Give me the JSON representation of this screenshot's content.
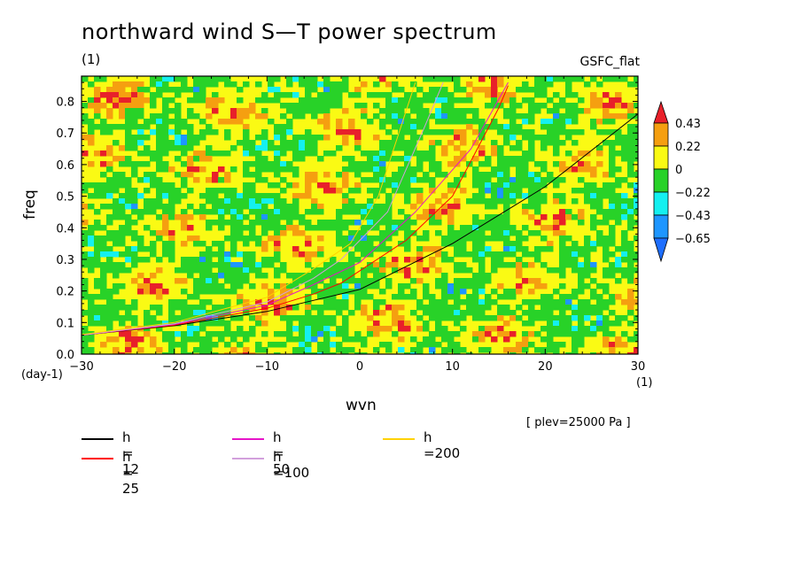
{
  "title": "northward wind S—T power spectrum",
  "unit_top": "(1)",
  "source": "GSFC_flat",
  "level_note": "[ plev=25000 Pa ]",
  "chart_data": {
    "type": "heatmap",
    "title": "northward wind S—T power spectrum",
    "xlabel": "wvn",
    "ylabel": "freq",
    "x_unit": "(1)",
    "y_unit": "(day-1)",
    "xlim": [
      -30,
      30
    ],
    "ylim": [
      0,
      0.88
    ],
    "x_ticks": [
      "-30",
      "-20",
      "-10",
      "0",
      "10",
      "20",
      "30"
    ],
    "y_ticks": [
      "0.0",
      "0.1",
      "0.2",
      "0.3",
      "0.4",
      "0.5",
      "0.6",
      "0.7",
      "0.8"
    ],
    "colorbar": {
      "labels": [
        "0.43",
        "0.22",
        "0",
        "−0.22",
        "−0.43",
        "−0.65"
      ],
      "bins": [
        {
          "range": "> 0.43",
          "color": "#e8202a"
        },
        {
          "range": "0.22 .. 0.43",
          "color": "#f59f10"
        },
        {
          "range": "0 .. 0.22",
          "color": "#fafa14"
        },
        {
          "range": "-0.22 .. 0",
          "color": "#28d228"
        },
        {
          "range": "-0.43 .. -0.22",
          "color": "#14f0f0"
        },
        {
          "range": "-0.65 .. -0.43",
          "color": "#1e96ff"
        },
        {
          "range": "< -0.65",
          "color": "#1e6eff"
        }
      ]
    },
    "dispersion_curves": [
      {
        "name": "h = 12",
        "color": "#000000"
      },
      {
        "name": "h = 25",
        "color": "#ff0000"
      },
      {
        "name": "h = 50",
        "color": "#e614c8"
      },
      {
        "name": "h =100",
        "color": "#d2a0dc"
      },
      {
        "name": "h =200",
        "color": "#ffd200"
      }
    ]
  }
}
